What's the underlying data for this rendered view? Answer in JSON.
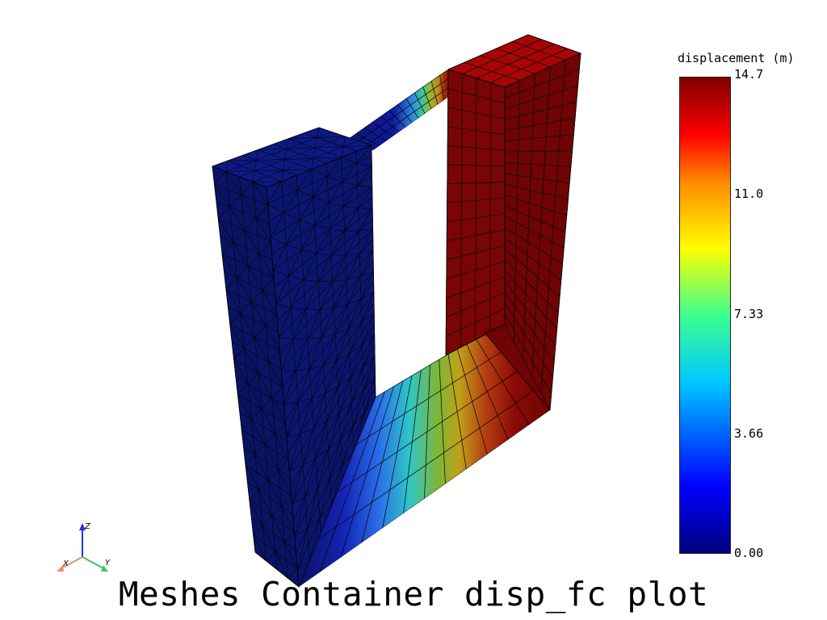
{
  "title": "Meshes Container disp_fc plot",
  "colorbar": {
    "label": "displacement (m)",
    "ticks": [
      "14.7",
      "11.0",
      "7.33",
      "3.66",
      "0.00"
    ],
    "min": 0.0,
    "max": 14.7,
    "colormap": [
      "#00007f",
      "#0000ff",
      "#00c8ff",
      "#3dff8f",
      "#ffff00",
      "#ff8a00",
      "#ff0000",
      "#7f0000"
    ]
  },
  "axes": {
    "x_label": "X",
    "y_label": "Y",
    "z_label": "Z",
    "x_color": "#f08a6c",
    "y_color": "#4cbf6c",
    "z_color": "#2233dd"
  },
  "mesh": {
    "left_color": "#0b1670",
    "right_color": "#7a0505",
    "edge_color": "#000000"
  }
}
